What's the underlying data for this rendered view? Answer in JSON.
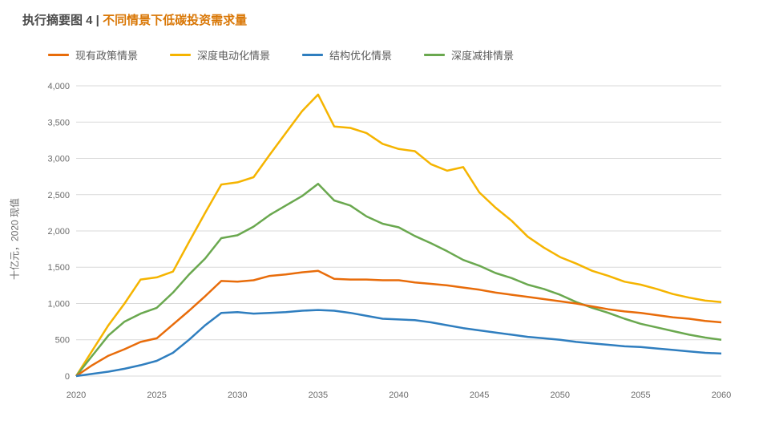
{
  "title": {
    "prefix": "执行摘要图 4",
    "separator": " | ",
    "main": "不同情景下低碳投资需求量",
    "prefix_color": "#4a4a4a",
    "main_color": "#d97706",
    "fontsize": 15
  },
  "legend": {
    "items": [
      {
        "label": "现有政策情景",
        "color": "#e86c0a"
      },
      {
        "label": "深度电动化情景",
        "color": "#f5b400"
      },
      {
        "label": "结构优化情景",
        "color": "#2f7ebf"
      },
      {
        "label": "深度减排情景",
        "color": "#6aa84f"
      }
    ],
    "fontsize": 13
  },
  "chart": {
    "type": "line",
    "background_color": "#ffffff",
    "grid_color": "#d9d9d9",
    "axis_color": "#bfbfbf",
    "line_width": 2.5,
    "ylabel": "十亿元，2020 现值",
    "label_fontsize": 12,
    "tick_fontsize": 11,
    "x_values": [
      2020,
      2021,
      2022,
      2023,
      2024,
      2025,
      2026,
      2027,
      2028,
      2029,
      2030,
      2031,
      2032,
      2033,
      2034,
      2035,
      2036,
      2037,
      2038,
      2039,
      2040,
      2041,
      2042,
      2043,
      2044,
      2045,
      2046,
      2047,
      2048,
      2049,
      2050,
      2051,
      2052,
      2053,
      2054,
      2055,
      2056,
      2057,
      2058,
      2059,
      2060
    ],
    "x_ticks": [
      2020,
      2025,
      2030,
      2035,
      2040,
      2045,
      2050,
      2055,
      2060
    ],
    "xlim": [
      2020,
      2060
    ],
    "y_ticks": [
      0,
      500,
      1000,
      1500,
      2000,
      2500,
      3000,
      3500,
      4000
    ],
    "ylim": [
      -100,
      4100
    ],
    "series": [
      {
        "name": "深度电动化情景",
        "color": "#f5b400",
        "values": [
          0,
          350,
          700,
          1000,
          1330,
          1360,
          1440,
          1850,
          2250,
          2640,
          2670,
          2740,
          3050,
          3350,
          3650,
          3880,
          3440,
          3420,
          3350,
          3200,
          3130,
          3100,
          2920,
          2830,
          2880,
          2530,
          2320,
          2140,
          1920,
          1770,
          1640,
          1550,
          1450,
          1380,
          1300,
          1260,
          1200,
          1130,
          1080,
          1040,
          1020
        ]
      },
      {
        "name": "深度减排情景",
        "color": "#6aa84f",
        "values": [
          0,
          280,
          560,
          750,
          860,
          940,
          1150,
          1400,
          1620,
          1900,
          1940,
          2060,
          2220,
          2350,
          2480,
          2650,
          2420,
          2350,
          2200,
          2100,
          2050,
          1930,
          1830,
          1720,
          1600,
          1520,
          1420,
          1350,
          1260,
          1200,
          1120,
          1020,
          940,
          870,
          790,
          720,
          670,
          620,
          570,
          530,
          500
        ]
      },
      {
        "name": "现有政策情景",
        "color": "#e86c0a",
        "values": [
          0,
          150,
          280,
          370,
          470,
          520,
          710,
          900,
          1100,
          1310,
          1300,
          1320,
          1380,
          1400,
          1430,
          1450,
          1340,
          1330,
          1330,
          1320,
          1320,
          1290,
          1270,
          1250,
          1220,
          1190,
          1150,
          1120,
          1090,
          1060,
          1030,
          1000,
          960,
          920,
          890,
          870,
          840,
          810,
          790,
          760,
          740
        ]
      },
      {
        "name": "结构优化情景",
        "color": "#2f7ebf",
        "values": [
          0,
          30,
          60,
          100,
          150,
          210,
          320,
          500,
          700,
          870,
          880,
          860,
          870,
          880,
          900,
          910,
          900,
          870,
          830,
          790,
          780,
          770,
          740,
          700,
          660,
          630,
          600,
          570,
          540,
          520,
          500,
          470,
          450,
          430,
          410,
          400,
          380,
          360,
          340,
          320,
          310
        ]
      }
    ]
  }
}
